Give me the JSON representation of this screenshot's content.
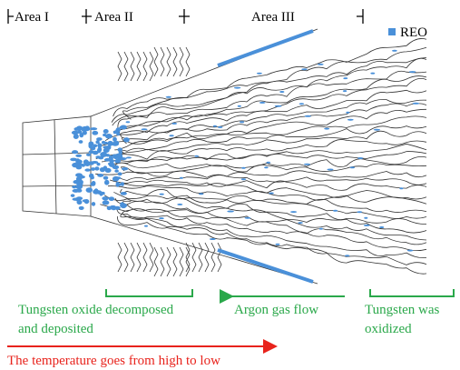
{
  "areas": [
    "Area I",
    "Area II",
    "Area III"
  ],
  "legend": {
    "label": "REO"
  },
  "annotations": {
    "deposited": [
      "Tungsten oxide decomposed",
      "and deposited"
    ],
    "gas_flow": "Argon gas flow",
    "oxidized": [
      "Tungsten was",
      "oxidized"
    ],
    "temperature": "The temperature goes from high to low"
  }
}
